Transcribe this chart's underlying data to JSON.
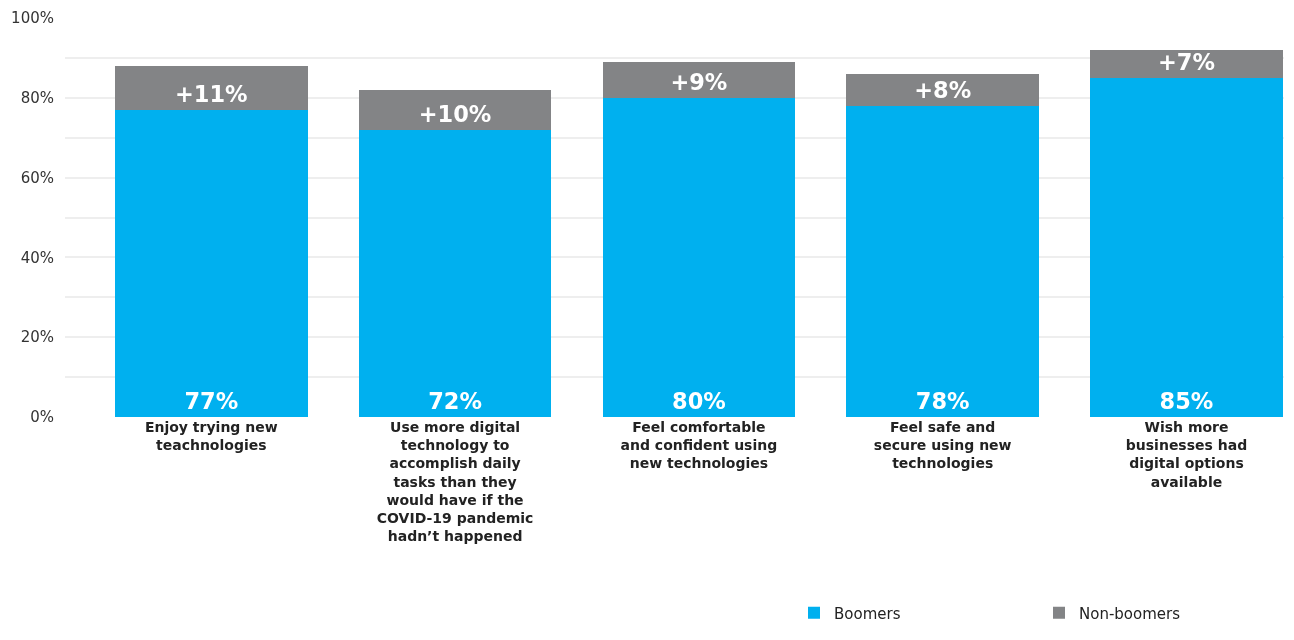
{
  "chart_data": {
    "type": "bar",
    "stacked": true,
    "categories": [
      "Enjoy trying new\nteachnologies",
      "Use more digital\ntechnology to\naccomplish daily\ntasks than they\nwould have if the\nCOVID-19 pandemic\nhadn’t happened",
      "Feel comfortable\nand confident using\nnew technologies",
      "Feel safe and\nsecure using new\ntechnologies",
      "Wish more\nbusinesses had\ndigital options\navailable"
    ],
    "series": [
      {
        "name": "Boomers",
        "color": "#00b0ef",
        "values": [
          77,
          72,
          80,
          78,
          85
        ],
        "value_labels": [
          "77%",
          "72%",
          "80%",
          "78%",
          "85%"
        ]
      },
      {
        "name": "Non-boomers",
        "color": "#838486",
        "values": [
          11,
          10,
          9,
          8,
          7
        ],
        "value_labels": [
          "+11%",
          "+10%",
          "+9%",
          "+8%",
          "+7%"
        ]
      }
    ],
    "ylim": [
      0,
      100
    ],
    "yticks": [
      {
        "value": 0,
        "label": "0%"
      },
      {
        "value": 10,
        "label": null
      },
      {
        "value": 20,
        "label": "20%"
      },
      {
        "value": 30,
        "label": null
      },
      {
        "value": 40,
        "label": "40%"
      },
      {
        "value": 50,
        "label": null
      },
      {
        "value": 60,
        "label": "60%"
      },
      {
        "value": 70,
        "label": null
      },
      {
        "value": 80,
        "label": "80%"
      },
      {
        "value": 90,
        "label": null
      },
      {
        "value": 100,
        "label": "100%"
      }
    ],
    "grid": "y",
    "legend": "bottom right"
  }
}
